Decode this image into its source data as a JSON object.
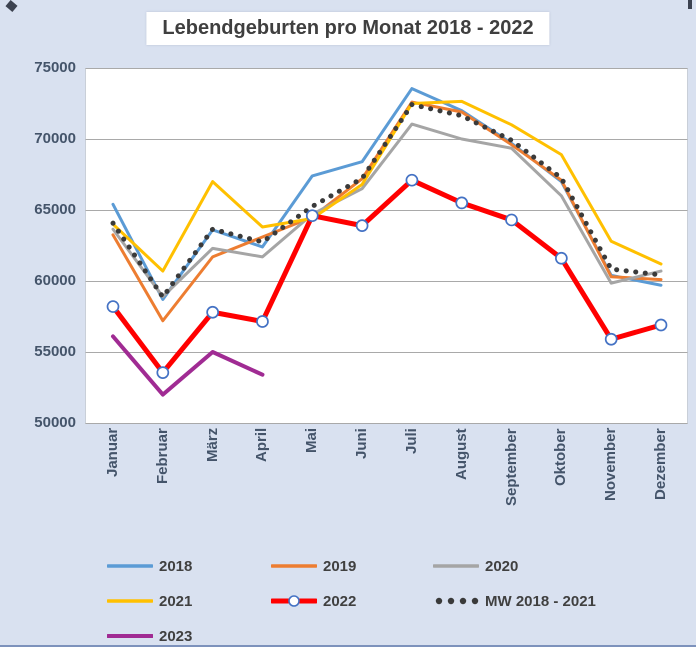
{
  "title": "Lebendgeburten pro Monat 2018 - 2022",
  "colors": {
    "background": "#D9E1F0",
    "plot_background": "#FFFFFF",
    "gridline": "#A9A9A9",
    "axis_text": "#44546A",
    "title_text": "#3F3F3F",
    "marker_ring": "#4472C4"
  },
  "y_axis": {
    "labels": [
      "75000",
      "70000",
      "65000",
      "60000",
      "55000",
      "50000"
    ]
  },
  "chart_data": {
    "type": "line",
    "title": "Lebendgeburten pro Monat 2018 - 2022",
    "categories": [
      "Januar",
      "Februar",
      "März",
      "April",
      "Mai",
      "Juni",
      "Juli",
      "August",
      "September",
      "Oktober",
      "November",
      "Dezember"
    ],
    "ylim": [
      50000,
      75000
    ],
    "y_ticks": [
      75000,
      70000,
      65000,
      60000,
      55000,
      50000
    ],
    "grid": true,
    "legend_position": "bottom",
    "series": [
      {
        "name": "2018",
        "color": "#5B9BD5",
        "style": "line",
        "values": [
          65400,
          58700,
          63600,
          62400,
          67400,
          68400,
          73550,
          72000,
          69700,
          67000,
          60400,
          59700
        ]
      },
      {
        "name": "2019",
        "color": "#ED7D31",
        "style": "line",
        "values": [
          63250,
          57200,
          61700,
          63100,
          64500,
          67200,
          72600,
          71900,
          69600,
          67100,
          60300,
          60100
        ]
      },
      {
        "name": "2020",
        "color": "#A5A5A5",
        "style": "line",
        "values": [
          63650,
          58900,
          62300,
          61700,
          64700,
          66500,
          71050,
          70000,
          69350,
          66000,
          59850,
          60700
        ]
      },
      {
        "name": "2021",
        "color": "#FFC000",
        "style": "line",
        "values": [
          64000,
          60700,
          67000,
          63800,
          64400,
          66800,
          72500,
          72650,
          71000,
          68900,
          62800,
          61200
        ]
      },
      {
        "name": "2022",
        "color": "#FF0000",
        "style": "line-circle-markers",
        "values": [
          58200,
          53550,
          57800,
          57150,
          64600,
          63900,
          67100,
          65500,
          64300,
          61600,
          55900,
          56900
        ]
      },
      {
        "name": "MW 2018 - 2021",
        "color": "#3A3A3A",
        "style": "dotted",
        "values": [
          64075,
          58875,
          63650,
          62750,
          65250,
          67225,
          72425,
          71640,
          69910,
          67250,
          60840,
          60425
        ]
      },
      {
        "name": "2023",
        "color": "#A02B93",
        "style": "line",
        "values": [
          56100,
          52000,
          55000,
          53400
        ]
      }
    ]
  },
  "legend": {
    "items": [
      "2018",
      "2019",
      "2020",
      "2021",
      "2022",
      "MW 2018 - 2021",
      "2023"
    ]
  }
}
